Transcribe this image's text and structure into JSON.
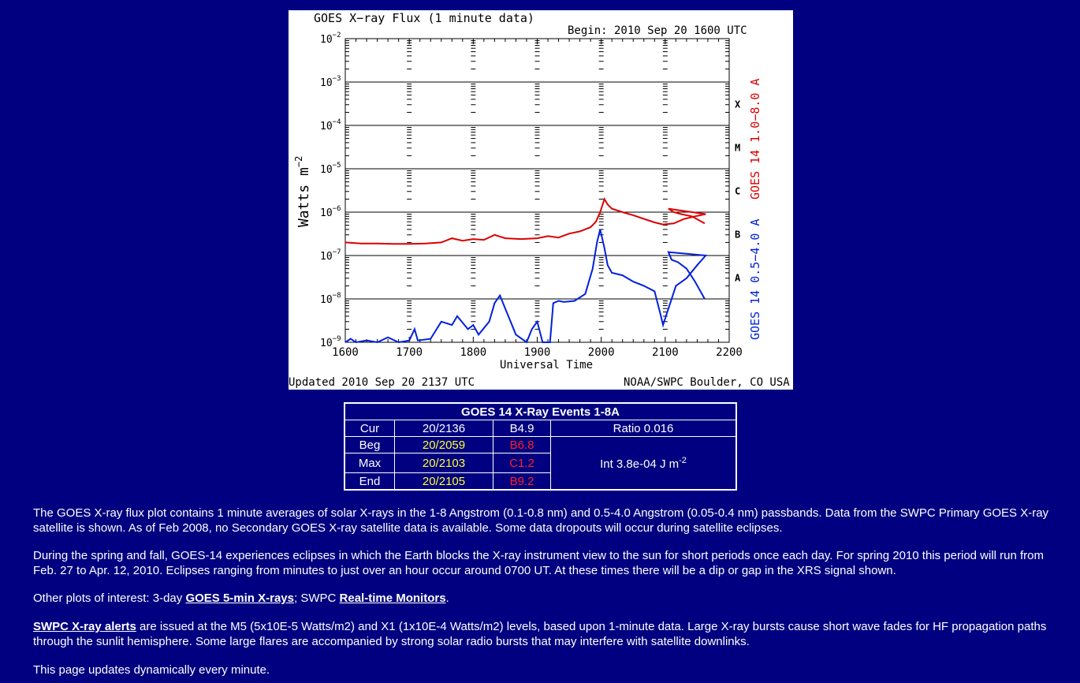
{
  "plot": {
    "title": "GOES X−ray Flux (1 minute data)",
    "begin": "Begin: 2010 Sep 20 1600 UTC",
    "ylabel": "Watts m",
    "ylabel_sup": "−2",
    "xlabel": "Universal Time",
    "updated": "Updated 2010 Sep 20 2137 UTC",
    "credit": "NOAA/SWPC Boulder, CO USA",
    "right_label_red": "GOES 14 1.0−8.0 A",
    "right_label_blue": "GOES 14 0.5−4.0 A",
    "class_labels": [
      "X",
      "M",
      "C",
      "B",
      "A"
    ],
    "colors": {
      "long": "#dd0000",
      "short": "#0020dd"
    }
  },
  "chart_data": {
    "type": "line",
    "title": "GOES X−ray Flux (1 minute data)",
    "xlabel": "Universal Time",
    "ylabel": "Watts m−2",
    "x_ticks": [
      "1600",
      "1700",
      "1800",
      "1900",
      "2000",
      "2100",
      "2200"
    ],
    "y_ticks": [
      "10−2",
      "10−3",
      "10−4",
      "10−5",
      "10−6",
      "10−7",
      "10−8",
      "10−9"
    ],
    "y_scale": "log",
    "ylim": [
      1e-09,
      0.01
    ],
    "xlim": [
      "1600",
      "2200"
    ],
    "series": [
      {
        "name": "GOES 14 1.0−8.0 A",
        "color": "#dd0000",
        "points": [
          [
            "1600",
            2e-07
          ],
          [
            "1615",
            1.9e-07
          ],
          [
            "1630",
            1.9e-07
          ],
          [
            "1645",
            1.85e-07
          ],
          [
            "1700",
            1.85e-07
          ],
          [
            "1715",
            1.9e-07
          ],
          [
            "1730",
            2e-07
          ],
          [
            "1740",
            2.5e-07
          ],
          [
            "1750",
            2.2e-07
          ],
          [
            "1800",
            2.4e-07
          ],
          [
            "1810",
            2.3e-07
          ],
          [
            "1820",
            3e-07
          ],
          [
            "1830",
            2.5e-07
          ],
          [
            "1845",
            2.4e-07
          ],
          [
            "1900",
            2.5e-07
          ],
          [
            "1910",
            2.8e-07
          ],
          [
            "1920",
            2.6e-07
          ],
          [
            "1930",
            3.2e-07
          ],
          [
            "1940",
            3.6e-07
          ],
          [
            "1950",
            4.5e-07
          ],
          [
            "1955",
            6e-07
          ],
          [
            "1959",
            1e-06
          ],
          [
            "2003",
            2e-06
          ],
          [
            "2006",
            1.5e-06
          ],
          [
            "2010",
            1.2e-06
          ],
          [
            "2020",
            1e-06
          ],
          [
            "2030",
            8.5e-07
          ],
          [
            "2040",
            7e-07
          ],
          [
            "2050",
            5.8e-07
          ],
          [
            "2058",
            5.2e-07
          ],
          [
            "2068",
            5.5e-07
          ],
          [
            "2078",
            7e-07
          ],
          [
            "2088",
            8e-07
          ],
          [
            "2098",
            9e-07
          ],
          [
            "2103",
            1.2e-06
          ],
          [
            "2108",
            1e-06
          ],
          [
            "2115",
            9e-07
          ],
          [
            "2125",
            8e-07
          ],
          [
            "2137",
            5.5e-07
          ]
        ]
      },
      {
        "name": "GOES 14 0.5−4.0 A",
        "color": "#0020dd",
        "points": [
          [
            "1600",
            1e-09
          ],
          [
            "1605",
            1.2e-09
          ],
          [
            "1610",
            1e-09
          ],
          [
            "1620",
            1.1e-09
          ],
          [
            "1630",
            1e-09
          ],
          [
            "1640",
            1.3e-09
          ],
          [
            "1650",
            1e-09
          ],
          [
            "1700",
            1.1e-09
          ],
          [
            "1705",
            2e-09
          ],
          [
            "1708",
            1.1e-09
          ],
          [
            "1720",
            1.2e-09
          ],
          [
            "1730",
            3e-09
          ],
          [
            "1740",
            2.5e-09
          ],
          [
            "1745",
            4e-09
          ],
          [
            "1755",
            2e-09
          ],
          [
            "1800",
            2.5e-09
          ],
          [
            "1805",
            1.5e-09
          ],
          [
            "1815",
            3e-09
          ],
          [
            "1820",
            8e-09
          ],
          [
            "1825",
            1.2e-08
          ],
          [
            "1830",
            6e-09
          ],
          [
            "1835",
            3e-09
          ],
          [
            "1840",
            1.5e-09
          ],
          [
            "1850",
            1e-09
          ],
          [
            "1855",
            2e-09
          ],
          [
            "1900",
            3e-09
          ],
          [
            "1905",
            1e-09
          ],
          [
            "1912",
            1e-09
          ],
          [
            "1915",
            8e-09
          ],
          [
            "1920",
            9e-09
          ],
          [
            "1925",
            8.5e-09
          ],
          [
            "1935",
            9e-09
          ],
          [
            "1945",
            1.3e-08
          ],
          [
            "1952",
            5e-08
          ],
          [
            "1956",
            2e-07
          ],
          [
            "1959",
            4e-07
          ],
          [
            "2003",
            1.5e-07
          ],
          [
            "2006",
            6e-08
          ],
          [
            "2010",
            4e-08
          ],
          [
            "2020",
            3.5e-08
          ],
          [
            "2030",
            2.5e-08
          ],
          [
            "2040",
            2e-08
          ],
          [
            "2050",
            1.5e-08
          ],
          [
            "2055",
            5e-09
          ],
          [
            "2058",
            2.5e-09
          ],
          [
            "2062",
            5e-09
          ],
          [
            "2070",
            2e-08
          ],
          [
            "2080",
            3e-08
          ],
          [
            "2090",
            6e-08
          ],
          [
            "2098",
            1e-07
          ],
          [
            "2103",
            1.2e-07
          ],
          [
            "2106",
            8e-08
          ],
          [
            "2112",
            7e-08
          ],
          [
            "2120",
            5e-08
          ],
          [
            "2128",
            2.5e-08
          ],
          [
            "2137",
            1e-08
          ]
        ]
      }
    ]
  },
  "events": {
    "title": "GOES 14 X-Ray Events 1-8A",
    "rows": [
      {
        "label": "Cur",
        "time": "20/2136",
        "class": "B4.9",
        "info": "Ratio 0.016"
      },
      {
        "label": "Beg",
        "time": "20/2059",
        "class": "B6.8"
      },
      {
        "label": "Max",
        "time": "20/2103",
        "class": "C1.2",
        "info": "Int 3.8e-04 J m",
        "info_sup": "-2"
      },
      {
        "label": "End",
        "time": "20/2105",
        "class": "B9.2"
      }
    ]
  },
  "text": {
    "p1": "The GOES X-ray flux plot contains 1 minute averages of solar X-rays in the 1-8 Angstrom (0.1-0.8 nm) and 0.5-4.0 Angstrom (0.05-0.4 nm) passbands. Data from the SWPC Primary GOES X-ray satellite is shown. As of Feb 2008, no Secondary GOES X-ray satellite data is available. Some data dropouts will occur during satellite eclipses.",
    "p2": "During the spring and fall, GOES-14 experiences eclipses in which the Earth blocks the X-ray instrument view to the sun for short periods once each day. For spring 2010 this period will run from Feb. 27 to Apr. 12, 2010. Eclipses ranging from minutes to just over an hour occur around 0700 UT. At these times there will be a dip or gap in the XRS signal shown.",
    "p3_pre": "Other plots of interest: 3-day ",
    "p3_link1": "GOES 5-min X-rays",
    "p3_mid": "; SWPC ",
    "p3_link2": "Real-time Monitors",
    "p3_post": ".",
    "p4_link": "SWPC X-ray alerts",
    "p4_rest": " are issued at the M5 (5x10E-5 Watts/m2) and X1 (1x10E-4 Watts/m2) levels, based upon 1-minute data. Large X-ray bursts cause short wave fades for HF propagation paths through the sunlit hemisphere. Some large flares are accompanied by strong solar radio bursts that may interfere with satellite downlinks.",
    "p5": "This page updates dynamically every minute."
  }
}
